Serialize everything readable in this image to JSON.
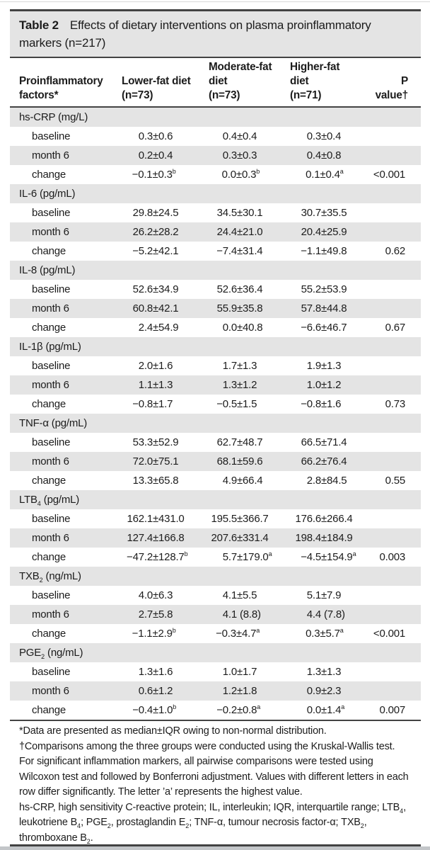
{
  "meta": {
    "title_label": "Table 2",
    "title_text": "Effects of dietary interventions on plasma proinflammatory markers (n=217)"
  },
  "table": {
    "column_headers": [
      {
        "lines": [
          "Proinflammatory",
          "factors*"
        ]
      },
      {
        "lines": [
          "Lower-fat diet",
          "(n=73)"
        ]
      },
      {
        "lines": [
          "Moderate-fat",
          "diet",
          "(n=73)"
        ]
      },
      {
        "lines": [
          "Higher-fat",
          "diet",
          "(n=71)"
        ]
      },
      {
        "lines": [
          "P value†"
        ]
      }
    ],
    "sections": [
      {
        "name": "hs-CRP (mg/L)",
        "rows": [
          {
            "label": "baseline",
            "values": [
              "0.3±0.6",
              "0.4±0.4",
              "0.3±0.4"
            ],
            "p_value": ""
          },
          {
            "label": "month 6",
            "values": [
              "0.2±0.4",
              "0.3±0.3",
              "0.4±0.8"
            ],
            "p_value": ""
          },
          {
            "label": "change",
            "values": [
              "−0.1±0.3^b^",
              "0.0±0.3^b^",
              "0.1±0.4^a^"
            ],
            "p_value": "<0.001"
          }
        ]
      },
      {
        "name": "IL-6 (pg/mL)",
        "rows": [
          {
            "label": "baseline",
            "values": [
              "29.8±24.5",
              "34.5±30.1",
              "30.7±35.5"
            ],
            "p_value": ""
          },
          {
            "label": "month 6",
            "values": [
              "26.2±28.2",
              "24.4±21.0",
              "20.4±25.9"
            ],
            "p_value": ""
          },
          {
            "label": "change",
            "values": [
              "−5.2±42.1",
              "−7.4±31.4",
              "−1.1±49.8"
            ],
            "p_value": "0.62"
          }
        ]
      },
      {
        "name": "IL-8 (pg/mL)",
        "rows": [
          {
            "label": "baseline",
            "values": [
              "52.6±34.9",
              "52.6±36.4",
              "55.2±53.9"
            ],
            "p_value": ""
          },
          {
            "label": "month 6",
            "values": [
              "60.8±42.1",
              "55.9±35.8",
              "57.8±44.8"
            ],
            "p_value": ""
          },
          {
            "label": "change",
            "values": [
              "2.4±54.9",
              "0.0±40.8",
              "−6.6±46.7"
            ],
            "p_value": "0.67"
          }
        ]
      },
      {
        "name": "IL-1β (pg/mL)",
        "rows": [
          {
            "label": "baseline",
            "values": [
              "2.0±1.6",
              "1.7±1.3",
              "1.9±1.3"
            ],
            "p_value": ""
          },
          {
            "label": "month 6",
            "values": [
              "1.1±1.3",
              "1.3±1.2",
              "1.0±1.2"
            ],
            "p_value": ""
          },
          {
            "label": "change",
            "values": [
              "−0.8±1.7",
              "−0.5±1.5",
              "−0.8±1.6"
            ],
            "p_value": "0.73"
          }
        ]
      },
      {
        "name": "TNF-α (pg/mL)",
        "rows": [
          {
            "label": "baseline",
            "values": [
              "53.3±52.9",
              "62.7±48.7",
              "66.5±71.4"
            ],
            "p_value": ""
          },
          {
            "label": "month 6",
            "values": [
              "72.0±75.1",
              "68.1±59.6",
              "66.2±76.4"
            ],
            "p_value": ""
          },
          {
            "label": "change",
            "values": [
              "13.3±65.8",
              "4.9±66.4",
              "2.8±84.5"
            ],
            "p_value": "0.55"
          }
        ]
      },
      {
        "name": "LTB~4~ (pg/mL)",
        "rows": [
          {
            "label": "baseline",
            "values": [
              "162.1±431.0",
              "195.5±366.7",
              "176.6±266.4"
            ],
            "p_value": ""
          },
          {
            "label": "month 6",
            "values": [
              "127.4±166.8",
              "207.6±331.4",
              "198.4±184.9"
            ],
            "p_value": ""
          },
          {
            "label": "change",
            "values": [
              "−47.2±128.7^b^",
              "5.7±179.0^a^",
              "−4.5±154.9^a^"
            ],
            "p_value": "0.003"
          }
        ]
      },
      {
        "name": "TXB~2~ (ng/mL)",
        "rows": [
          {
            "label": "baseline",
            "values": [
              "4.0±6.3",
              "4.1±5.5",
              "5.1±7.9"
            ],
            "p_value": ""
          },
          {
            "label": "month 6",
            "values": [
              "2.7±5.8",
              "4.1 (8.8)",
              "4.4 (7.8)"
            ],
            "p_value": ""
          },
          {
            "label": "change",
            "values": [
              "−1.1±2.9^b^",
              "−0.3±4.7^a^",
              "0.3±5.7^a^"
            ],
            "p_value": "<0.001"
          }
        ]
      },
      {
        "name": "PGE~2~ (ng/mL)",
        "rows": [
          {
            "label": "baseline",
            "values": [
              "1.3±1.6",
              "1.0±1.7",
              "1.3±1.3"
            ],
            "p_value": ""
          },
          {
            "label": "month 6",
            "values": [
              "0.6±1.2",
              "1.2±1.8",
              "0.9±2.3"
            ],
            "p_value": ""
          },
          {
            "label": "change",
            "values": [
              "−0.4±1.0^b^",
              "−0.2±0.8^a^",
              "0.0±1.4^a^"
            ],
            "p_value": "0.007"
          }
        ]
      }
    ]
  },
  "footnotes": [
    "*Data are presented as median±IQR owing to non-normal distribution.",
    "†Comparisons among the three groups were conducted using the Kruskal-Wallis test. For significant inflammation markers, all pairwise comparisons were tested using Wilcoxon test and followed by Bonferroni adjustment. Values with different letters in each row differ significantly. The letter ’a’ represents the highest value.",
    "hs-CRP, high sensitivity C-reactive protein; IL, interleukin; IQR, interquartile range; LTB~4~, leukotriene B~4~; PGE~2~, prostaglandin E~2~; TNF-α, tumour necrosis factor-α; TXB~2~, thromboxane B~2~."
  ],
  "colors": {
    "row_shade": "#e4e4e4",
    "rule": "#434343",
    "text": "#1c1c1c",
    "page_bottom_strip": "#c3c6c9"
  }
}
